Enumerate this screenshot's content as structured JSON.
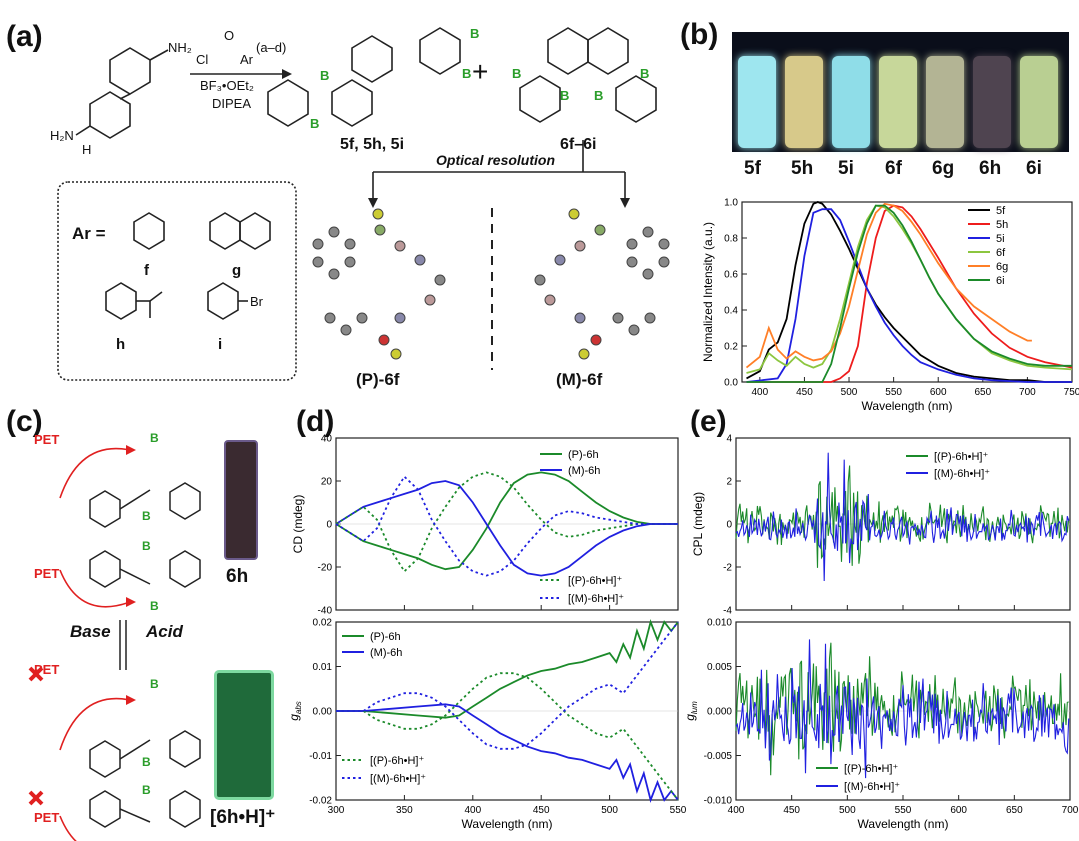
{
  "panels": {
    "a": "(a)",
    "b": "(b)",
    "c": "(c)",
    "d": "(d)",
    "e": "(e)"
  },
  "panel_a": {
    "reagent_acyl": "Cl",
    "reagent_o": "O",
    "reagent_ar": "Ar",
    "reagent_code": "(a–d)",
    "condition1": "BF₃•OEt₂",
    "condition2": "DIPEA",
    "products1": "5f, 5h, 5i",
    "products2": "6f–6i",
    "plus": "+",
    "optical_resolution": "Optical resolution",
    "ar_label": "Ar =",
    "ar_codes": [
      "f",
      "g",
      "h",
      "i"
    ],
    "br": "Br",
    "nh2": "NH₂",
    "h2n": "H₂N",
    "h": "H",
    "enantiomer_P": "(P)-6f",
    "enantiomer_M": "(M)-6f"
  },
  "panel_b": {
    "vials": [
      {
        "label": "5f",
        "color": "#9ee6ef"
      },
      {
        "label": "5h",
        "color": "#d7c98a"
      },
      {
        "label": "5i",
        "color": "#8fdde8"
      },
      {
        "label": "6f",
        "color": "#c7d79a"
      },
      {
        "label": "6g",
        "color": "#b3b494"
      },
      {
        "label": "6h",
        "color": "#4f4450"
      },
      {
        "label": "6i",
        "color": "#b9cf92"
      }
    ]
  },
  "panel_c": {
    "pet": "PET",
    "base": "Base",
    "acid": "Acid",
    "vial_top_label": "6h",
    "vial_bottom_label": "[6h•H]⁺"
  },
  "chart_data": [
    {
      "id": "b-emission",
      "type": "line",
      "xlabel": "Wavelength (nm)",
      "ylabel": "Normalized Intensity (a.u.)",
      "xlim": [
        380,
        750
      ],
      "ylim": [
        0,
        1.0
      ],
      "xticks": [
        400,
        450,
        500,
        550,
        600,
        650,
        700,
        750
      ],
      "yticks": [
        0.0,
        0.2,
        0.4,
        0.6,
        0.8,
        1.0
      ],
      "legend": "top-right",
      "series": [
        {
          "name": "5f",
          "color": "#000000",
          "x": [
            385,
            400,
            410,
            420,
            430,
            440,
            450,
            460,
            465,
            470,
            480,
            490,
            500,
            510,
            520,
            530,
            540,
            550,
            560,
            570,
            580,
            590,
            600,
            620,
            640,
            660,
            680,
            700,
            720,
            740,
            750
          ],
          "y": [
            0.02,
            0.06,
            0.18,
            0.22,
            0.35,
            0.65,
            0.88,
            0.99,
            1.0,
            0.99,
            0.93,
            0.84,
            0.74,
            0.63,
            0.52,
            0.43,
            0.36,
            0.3,
            0.25,
            0.2,
            0.15,
            0.12,
            0.09,
            0.05,
            0.03,
            0.02,
            0.01,
            0.01,
            0.0,
            0.0,
            0.0
          ]
        },
        {
          "name": "5h",
          "color": "#ee1c1c",
          "x": [
            385,
            480,
            490,
            500,
            510,
            520,
            530,
            540,
            550,
            560,
            570,
            580,
            590,
            600,
            620,
            640,
            660,
            680,
            700,
            720,
            740,
            750
          ],
          "y": [
            0.0,
            0.0,
            0.02,
            0.06,
            0.2,
            0.55,
            0.8,
            0.95,
            0.98,
            0.97,
            0.92,
            0.85,
            0.77,
            0.69,
            0.52,
            0.38,
            0.27,
            0.19,
            0.14,
            0.11,
            0.09,
            0.08
          ]
        },
        {
          "name": "5i",
          "color": "#2020e0",
          "x": [
            385,
            420,
            430,
            440,
            450,
            460,
            470,
            480,
            490,
            500,
            510,
            520,
            530,
            540,
            550,
            560,
            570,
            580,
            600,
            620,
            640,
            660,
            700,
            750
          ],
          "y": [
            0.0,
            0.02,
            0.1,
            0.35,
            0.7,
            0.94,
            0.96,
            0.96,
            0.9,
            0.78,
            0.65,
            0.52,
            0.42,
            0.33,
            0.26,
            0.2,
            0.15,
            0.11,
            0.07,
            0.04,
            0.02,
            0.01,
            0.0,
            0.0
          ]
        },
        {
          "name": "6f",
          "color": "#8cc63f",
          "x": [
            385,
            400,
            410,
            420,
            430,
            440,
            450,
            460,
            470,
            480,
            490,
            500,
            510,
            520,
            530,
            540,
            550,
            560,
            570,
            580,
            590,
            600,
            620,
            640,
            660,
            680,
            700,
            720,
            750
          ],
          "y": [
            0.05,
            0.07,
            0.16,
            0.12,
            0.09,
            0.14,
            0.1,
            0.08,
            0.1,
            0.18,
            0.35,
            0.55,
            0.75,
            0.9,
            0.98,
            0.97,
            0.92,
            0.85,
            0.77,
            0.68,
            0.58,
            0.49,
            0.35,
            0.24,
            0.16,
            0.12,
            0.09,
            0.08,
            0.07
          ]
        },
        {
          "name": "6g",
          "color": "#ff7f27",
          "x": [
            385,
            400,
            410,
            420,
            430,
            440,
            450,
            460,
            470,
            480,
            490,
            500,
            510,
            520,
            530,
            540,
            550,
            560,
            570,
            580,
            590,
            600,
            620,
            640,
            660,
            680,
            700,
            705
          ],
          "y": [
            0.08,
            0.14,
            0.3,
            0.18,
            0.13,
            0.17,
            0.14,
            0.12,
            0.13,
            0.17,
            0.27,
            0.42,
            0.62,
            0.82,
            0.94,
            0.99,
            0.98,
            0.95,
            0.89,
            0.82,
            0.74,
            0.66,
            0.52,
            0.42,
            0.35,
            0.28,
            0.23,
            0.23
          ]
        },
        {
          "name": "6i",
          "color": "#1b8a2a",
          "x": [
            385,
            470,
            480,
            490,
            500,
            510,
            520,
            530,
            540,
            550,
            560,
            570,
            580,
            590,
            600,
            620,
            640,
            660,
            680,
            700,
            720,
            750
          ],
          "y": [
            0.0,
            0.0,
            0.1,
            0.3,
            0.52,
            0.72,
            0.88,
            0.98,
            0.98,
            0.94,
            0.87,
            0.78,
            0.68,
            0.58,
            0.49,
            0.35,
            0.24,
            0.17,
            0.13,
            0.1,
            0.09,
            0.09
          ]
        }
      ]
    },
    {
      "id": "d-cd",
      "type": "line",
      "xlabel": "",
      "ylabel": "CD (mdeg)",
      "xlim": [
        300,
        550
      ],
      "ylim": [
        -40,
        40
      ],
      "yticks": [
        -40,
        -20,
        0,
        20,
        40
      ],
      "legend": "top-right",
      "series": [
        {
          "name": "(P)-6h",
          "color": "#1b8a2a",
          "dash": false,
          "x": [
            300,
            310,
            320,
            330,
            340,
            350,
            360,
            370,
            380,
            390,
            400,
            410,
            420,
            430,
            440,
            450,
            460,
            470,
            480,
            490,
            500,
            510,
            520,
            530,
            540,
            550
          ],
          "y": [
            0,
            -4,
            -8,
            -10,
            -12,
            -14,
            -16,
            -19,
            -21,
            -20,
            -12,
            -2,
            10,
            19,
            23,
            24,
            23,
            20,
            15,
            10,
            6,
            3,
            1,
            0,
            0,
            0
          ]
        },
        {
          "name": "(M)-6h",
          "color": "#2020e0",
          "dash": false,
          "x": [
            300,
            310,
            320,
            330,
            340,
            350,
            360,
            370,
            380,
            390,
            400,
            410,
            420,
            430,
            440,
            450,
            460,
            470,
            480,
            490,
            500,
            510,
            520,
            530,
            540,
            550
          ],
          "y": [
            0,
            4,
            8,
            10,
            12,
            14,
            16,
            19,
            20,
            18,
            10,
            0,
            -10,
            -19,
            -23,
            -24,
            -23,
            -20,
            -15,
            -10,
            -6,
            -3,
            -1,
            0,
            0,
            0
          ]
        },
        {
          "name": "[(P)-6h•H]⁺",
          "color": "#1b8a2a",
          "dash": true,
          "x": [
            300,
            310,
            320,
            330,
            340,
            350,
            360,
            370,
            380,
            390,
            400,
            410,
            420,
            430,
            440,
            450,
            460,
            470,
            480,
            490,
            500,
            510,
            520,
            530,
            540,
            550
          ],
          "y": [
            0,
            4,
            8,
            2,
            -12,
            -22,
            -16,
            -2,
            8,
            17,
            22,
            24,
            22,
            17,
            9,
            2,
            -4,
            -6,
            -5,
            -3,
            -2,
            -1,
            0,
            0,
            0,
            0
          ]
        },
        {
          "name": "[(M)-6h•H]⁺",
          "color": "#2020e0",
          "dash": true,
          "x": [
            300,
            310,
            320,
            330,
            340,
            350,
            360,
            370,
            380,
            390,
            400,
            410,
            420,
            430,
            440,
            450,
            460,
            470,
            480,
            490,
            500,
            510,
            520,
            530,
            540,
            550
          ],
          "y": [
            0,
            -4,
            -8,
            -2,
            12,
            22,
            16,
            2,
            -8,
            -17,
            -22,
            -24,
            -22,
            -17,
            -9,
            -2,
            4,
            6,
            5,
            3,
            2,
            1,
            0,
            0,
            0,
            0
          ]
        }
      ]
    },
    {
      "id": "d-gabs",
      "type": "line",
      "xlabel": "Wavelength (nm)",
      "ylabel": "g_abs",
      "xlim": [
        300,
        550
      ],
      "ylim": [
        -0.02,
        0.02
      ],
      "xticks": [
        300,
        350,
        400,
        450,
        500,
        550
      ],
      "yticks": [
        -0.02,
        -0.01,
        0.0,
        0.01,
        0.02
      ],
      "legend": "top-left",
      "series": [
        {
          "name": "(P)-6h",
          "color": "#1b8a2a",
          "dash": false,
          "x": [
            300,
            320,
            340,
            360,
            380,
            390,
            400,
            410,
            420,
            430,
            440,
            450,
            460,
            470,
            480,
            490,
            500,
            505,
            510,
            515,
            520,
            525,
            530,
            535,
            540,
            545,
            550
          ],
          "y": [
            0.0,
            0.0,
            -0.0005,
            -0.001,
            -0.0015,
            -0.001,
            0.001,
            0.003,
            0.005,
            0.0065,
            0.008,
            0.009,
            0.0095,
            0.0105,
            0.011,
            0.012,
            0.013,
            0.011,
            0.015,
            0.012,
            0.018,
            0.014,
            0.02,
            0.016,
            0.02,
            0.018,
            0.02
          ]
        },
        {
          "name": "(M)-6h",
          "color": "#2020e0",
          "dash": false,
          "x": [
            300,
            320,
            340,
            360,
            380,
            390,
            400,
            410,
            420,
            430,
            440,
            450,
            460,
            470,
            480,
            490,
            500,
            505,
            510,
            515,
            520,
            525,
            530,
            535,
            540,
            545,
            550
          ],
          "y": [
            0.0,
            0.0,
            0.0005,
            0.001,
            0.0015,
            0.001,
            -0.001,
            -0.003,
            -0.005,
            -0.0065,
            -0.008,
            -0.009,
            -0.0095,
            -0.0105,
            -0.011,
            -0.012,
            -0.013,
            -0.011,
            -0.015,
            -0.012,
            -0.018,
            -0.014,
            -0.02,
            -0.016,
            -0.02,
            -0.018,
            -0.02
          ]
        },
        {
          "name": "[(P)-6h•H]⁺",
          "color": "#1b8a2a",
          "dash": true,
          "x": [
            300,
            320,
            330,
            340,
            350,
            360,
            370,
            380,
            390,
            400,
            410,
            420,
            430,
            440,
            450,
            460,
            470,
            480,
            490,
            500,
            510,
            520,
            530,
            540,
            550
          ],
          "y": [
            0.0,
            0.0,
            -0.002,
            -0.003,
            -0.004,
            -0.004,
            -0.003,
            -0.001,
            0.002,
            0.005,
            0.0075,
            0.0085,
            0.0085,
            0.0075,
            0.005,
            0.002,
            -0.001,
            -0.003,
            -0.005,
            -0.006,
            -0.004,
            -0.008,
            -0.012,
            -0.016,
            -0.02
          ]
        },
        {
          "name": "[(M)-6h•H]⁺",
          "color": "#2020e0",
          "dash": true,
          "x": [
            300,
            320,
            330,
            340,
            350,
            360,
            370,
            380,
            390,
            400,
            410,
            420,
            430,
            440,
            450,
            460,
            470,
            480,
            490,
            500,
            510,
            520,
            530,
            540,
            550
          ],
          "y": [
            0.0,
            0.0,
            0.002,
            0.003,
            0.004,
            0.004,
            0.003,
            0.001,
            -0.002,
            -0.005,
            -0.0075,
            -0.0085,
            -0.0085,
            -0.0075,
            -0.005,
            -0.002,
            0.001,
            0.003,
            0.005,
            0.006,
            0.004,
            0.008,
            0.012,
            0.016,
            0.02
          ]
        }
      ]
    },
    {
      "id": "e-cpl",
      "type": "line",
      "xlabel": "",
      "ylabel": "CPL (mdeg)",
      "xlim": [
        400,
        700
      ],
      "ylim": [
        -4,
        4
      ],
      "yticks": [
        -4,
        -2,
        0,
        2,
        4
      ],
      "legend": "top-right",
      "series": [
        {
          "name": "[(P)-6h•H]⁺",
          "color": "#1b8a2a",
          "noise_amp": 0.8,
          "burst": [
            470,
            520,
            2.0
          ],
          "offset": 0.0
        },
        {
          "name": "[(M)-6h•H]⁺",
          "color": "#2020e0",
          "noise_amp": 0.7,
          "burst": [
            470,
            520,
            2.2
          ],
          "offset": -0.2
        }
      ]
    },
    {
      "id": "e-glum",
      "type": "line",
      "xlabel": "Wavelength (nm)",
      "ylabel": "g_lum",
      "xlim": [
        400,
        700
      ],
      "ylim": [
        -0.01,
        0.01
      ],
      "xticks": [
        400,
        450,
        500,
        550,
        600,
        650,
        700
      ],
      "yticks": [
        -0.01,
        -0.005,
        0.0,
        0.005,
        0.01
      ],
      "legend": "bottom-left",
      "series": [
        {
          "name": "[(P)-6h•H]⁺",
          "color": "#1b8a2a",
          "noise_amp": 0.0032,
          "burst": [
            420,
            520,
            0.004
          ],
          "offset": 0.0005
        },
        {
          "name": "[(M)-6h•H]⁺",
          "color": "#2020e0",
          "noise_amp": 0.0032,
          "burst": [
            420,
            520,
            0.004
          ],
          "offset": -0.0008
        }
      ]
    }
  ]
}
